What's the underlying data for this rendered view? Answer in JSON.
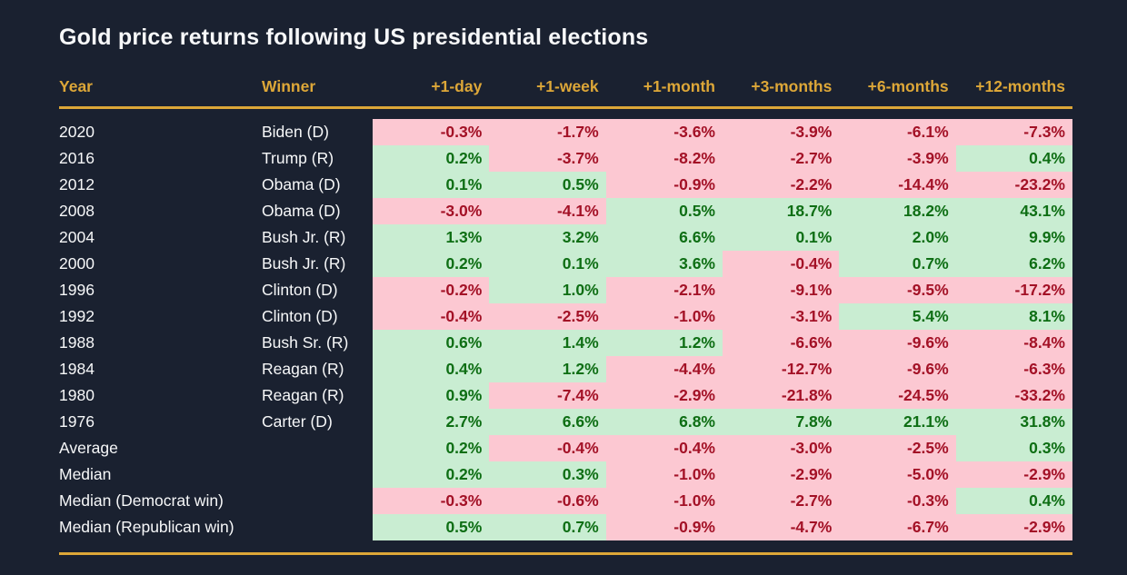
{
  "colors": {
    "background": "#1a2130",
    "accent_gold": "#dda738",
    "text_primary": "#f7f8f9",
    "positive_bg": "#c9edd2",
    "positive_text": "#0e6e14",
    "negative_bg": "#fcc8d2",
    "negative_text": "#a31126"
  },
  "chart_data": {
    "type": "table",
    "title": "Gold price returns following US presidential elections",
    "columns": [
      "Year",
      "Winner",
      "+1-day",
      "+1-week",
      "+1-month",
      "+3-months",
      "+6-months",
      "+12-months"
    ],
    "value_format": "percent_one_decimal",
    "color_coding": "green = positive return, pink = negative return",
    "rows": [
      {
        "label": "2020",
        "winner": "Biden (D)",
        "returns": [
          -0.3,
          -1.7,
          -3.6,
          -3.9,
          -6.1,
          -7.3
        ]
      },
      {
        "label": "2016",
        "winner": "Trump (R)",
        "returns": [
          0.2,
          -3.7,
          -8.2,
          -2.7,
          -3.9,
          0.4
        ]
      },
      {
        "label": "2012",
        "winner": "Obama (D)",
        "returns": [
          0.1,
          0.5,
          -0.9,
          -2.2,
          -14.4,
          -23.2
        ]
      },
      {
        "label": "2008",
        "winner": "Obama (D)",
        "returns": [
          -3.0,
          -4.1,
          0.5,
          18.7,
          18.2,
          43.1
        ]
      },
      {
        "label": "2004",
        "winner": "Bush Jr. (R)",
        "returns": [
          1.3,
          3.2,
          6.6,
          0.1,
          2.0,
          9.9
        ]
      },
      {
        "label": "2000",
        "winner": "Bush Jr. (R)",
        "returns": [
          0.2,
          0.1,
          3.6,
          -0.4,
          0.7,
          6.2
        ]
      },
      {
        "label": "1996",
        "winner": "Clinton (D)",
        "returns": [
          -0.2,
          1.0,
          -2.1,
          -9.1,
          -9.5,
          -17.2
        ]
      },
      {
        "label": "1992",
        "winner": "Clinton (D)",
        "returns": [
          -0.4,
          -2.5,
          -1.0,
          -3.1,
          5.4,
          8.1
        ]
      },
      {
        "label": "1988",
        "winner": "Bush Sr. (R)",
        "returns": [
          0.6,
          1.4,
          1.2,
          -6.6,
          -9.6,
          -8.4
        ]
      },
      {
        "label": "1984",
        "winner": "Reagan (R)",
        "returns": [
          0.4,
          1.2,
          -4.4,
          -12.7,
          -9.6,
          -6.3
        ]
      },
      {
        "label": "1980",
        "winner": "Reagan (R)",
        "returns": [
          0.9,
          -7.4,
          -2.9,
          -21.8,
          -24.5,
          -33.2
        ]
      },
      {
        "label": "1976",
        "winner": "Carter (D)",
        "returns": [
          2.7,
          6.6,
          6.8,
          7.8,
          21.1,
          31.8
        ]
      },
      {
        "label": "Average",
        "winner": "",
        "returns": [
          0.2,
          -0.4,
          -0.4,
          -3.0,
          -2.5,
          0.3
        ]
      },
      {
        "label": "Median",
        "winner": "",
        "returns": [
          0.2,
          0.3,
          -1.0,
          -2.9,
          -5.0,
          -2.9
        ]
      },
      {
        "label": "Median (Democrat win)",
        "winner": "",
        "returns": [
          -0.3,
          -0.6,
          -1.0,
          -2.7,
          -0.3,
          0.4
        ]
      },
      {
        "label": "Median (Republican win)",
        "winner": "",
        "returns": [
          0.5,
          0.7,
          -0.9,
          -4.7,
          -6.7,
          -2.9
        ]
      }
    ]
  }
}
